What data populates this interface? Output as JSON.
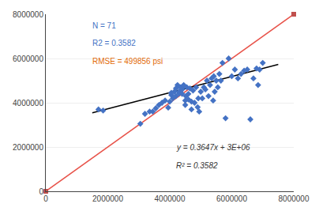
{
  "chart_data": {
    "type": "scatter",
    "series": [
      {
        "type": "line",
        "color": "#E8534A",
        "x": [
          0,
          8000000
        ],
        "values": [
          0,
          8000000
        ]
      },
      {
        "type": "scatter",
        "color": "#C0504D",
        "marker": "square",
        "x": [
          0,
          8000000
        ],
        "values": [
          0,
          8000000
        ]
      },
      {
        "type": "line",
        "color": "#000000",
        "x": [
          1500000,
          7500000
        ],
        "values": [
          3547050,
          5735250
        ]
      },
      {
        "type": "scatter",
        "color": "#4472C4",
        "marker": "diamond",
        "x": [
          1700000,
          1850000,
          3050000,
          3200000,
          3350000,
          3450000,
          3550000,
          3650000,
          3750000,
          3850000,
          3950000,
          4000000,
          4050000,
          4050000,
          4100000,
          4150000,
          4200000,
          4200000,
          4250000,
          4300000,
          4300000,
          4350000,
          4400000,
          4400000,
          4450000,
          4450000,
          4500000,
          4500000,
          4520000,
          4550000,
          4600000,
          4600000,
          4650000,
          4700000,
          4700000,
          4750000,
          4800000,
          4850000,
          4900000,
          4920000,
          4950000,
          5000000,
          5050000,
          5100000,
          5150000,
          5200000,
          5250000,
          5300000,
          5350000,
          5400000,
          5420000,
          5450000,
          5500000,
          5550000,
          5600000,
          5650000,
          5700000,
          5800000,
          5900000,
          6000000,
          6100000,
          6200000,
          6300000,
          6400000,
          6500000,
          6600000,
          6700000,
          6800000,
          6850000,
          6900000,
          7000000
        ],
        "values": [
          3700000,
          3650000,
          3050000,
          3500000,
          3600000,
          3600000,
          3750000,
          3900000,
          4000000,
          4100000,
          3780000,
          4050000,
          4350000,
          4450000,
          4200000,
          4500000,
          4300000,
          4650000,
          4800000,
          4420000,
          4500000,
          4700000,
          4400000,
          4600000,
          4800000,
          4750000,
          3900000,
          4100000,
          4300000,
          4700000,
          4150000,
          4400000,
          4650000,
          3700000,
          4050000,
          4550000,
          4000000,
          4700000,
          3800000,
          4200000,
          3600000,
          4500000,
          4200000,
          4700000,
          4600000,
          5000000,
          4300000,
          4800000,
          5100000,
          4100000,
          5200000,
          4500000,
          5000000,
          4700000,
          5300000,
          5000000,
          5800000,
          3300000,
          6000000,
          5200000,
          5500000,
          5100000,
          5300000,
          5450000,
          5500000,
          3250000,
          5100000,
          5550000,
          4800000,
          5500000,
          5800000
        ]
      }
    ],
    "xlim": [
      0,
      8000000
    ],
    "ylim": [
      0,
      8000000
    ],
    "xticks": [
      0,
      2000000,
      4000000,
      6000000,
      8000000
    ],
    "yticks": [
      0,
      2000000,
      4000000,
      6000000,
      8000000
    ],
    "grid": "y",
    "annotations": [
      {
        "text": "N = 71",
        "color": "#4472C4"
      },
      {
        "text": "R2 = 0.3582",
        "color": "#4472C4"
      },
      {
        "text": "RMSE = 499856 psi",
        "color": "#E36C09"
      },
      {
        "text": "y = 0.3647x + 3E+06",
        "color": "#333333"
      },
      {
        "text": "R² = 0.3582",
        "color": "#333333"
      }
    ]
  }
}
